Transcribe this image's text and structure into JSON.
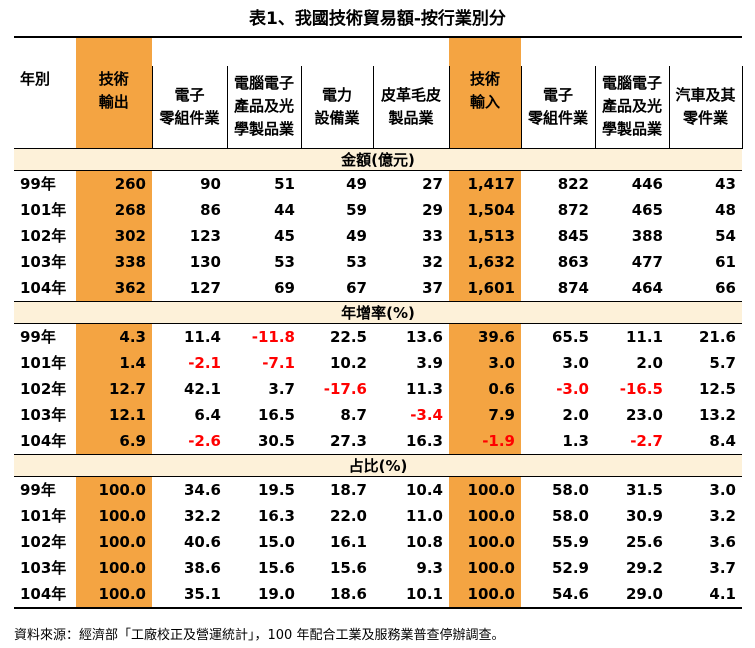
{
  "title": "表1、我國技術貿易額-按行業別分",
  "headers": [
    "年別",
    "技術輸出",
    "電子零組件業",
    "電腦電子產品及光學製品業",
    "電力設備業",
    "皮革毛皮製品業",
    "技術輸入",
    "電子零組件業",
    "電腦電子產品及光學製品業",
    "汽車及其零件業"
  ],
  "header_lines": [
    [
      "年別"
    ],
    [
      "技術",
      "輸出"
    ],
    [
      "電子",
      "零組件業"
    ],
    [
      "電腦電子",
      "產品及光",
      "學製品業"
    ],
    [
      "電力",
      "設備業"
    ],
    [
      "皮革毛皮",
      "製品業"
    ],
    [
      "技術",
      "輸入"
    ],
    [
      "電子",
      "零組件業"
    ],
    [
      "電腦電子",
      "產品及光",
      "學製品業"
    ],
    [
      "汽車及其",
      "零件業"
    ]
  ],
  "sections": [
    {
      "name": "金額(億元)",
      "rows": [
        [
          "99年",
          "260",
          "90",
          "51",
          "49",
          "27",
          "1,417",
          "822",
          "446",
          "43"
        ],
        [
          "101年",
          "268",
          "86",
          "44",
          "59",
          "29",
          "1,504",
          "872",
          "465",
          "48"
        ],
        [
          "102年",
          "302",
          "123",
          "45",
          "49",
          "33",
          "1,513",
          "845",
          "388",
          "54"
        ],
        [
          "103年",
          "338",
          "130",
          "53",
          "53",
          "32",
          "1,632",
          "863",
          "477",
          "61"
        ],
        [
          "104年",
          "362",
          "127",
          "69",
          "67",
          "37",
          "1,601",
          "874",
          "464",
          "66"
        ]
      ]
    },
    {
      "name": "年增率(%)",
      "rows": [
        [
          "99年",
          "4.3",
          "11.4",
          "-11.8",
          "22.5",
          "13.6",
          "39.6",
          "65.5",
          "11.1",
          "21.6"
        ],
        [
          "101年",
          "1.4",
          "-2.1",
          "-7.1",
          "10.2",
          "3.9",
          "3.0",
          "3.0",
          "2.0",
          "5.7"
        ],
        [
          "102年",
          "12.7",
          "42.1",
          "3.7",
          "-17.6",
          "11.3",
          "0.6",
          "-3.0",
          "-16.5",
          "12.5"
        ],
        [
          "103年",
          "12.1",
          "6.4",
          "16.5",
          "8.7",
          "-3.4",
          "7.9",
          "2.0",
          "23.0",
          "13.2"
        ],
        [
          "104年",
          "6.9",
          "-2.6",
          "30.5",
          "27.3",
          "16.3",
          "-1.9",
          "1.3",
          "-2.7",
          "8.4"
        ]
      ]
    },
    {
      "name": "占比(%)",
      "rows": [
        [
          "99年",
          "100.0",
          "34.6",
          "19.5",
          "18.7",
          "10.4",
          "100.0",
          "58.0",
          "31.5",
          "3.0"
        ],
        [
          "101年",
          "100.0",
          "32.2",
          "16.3",
          "22.0",
          "11.0",
          "100.0",
          "58.0",
          "30.9",
          "3.2"
        ],
        [
          "102年",
          "100.0",
          "40.6",
          "15.0",
          "16.1",
          "10.8",
          "100.0",
          "55.9",
          "25.6",
          "3.6"
        ],
        [
          "103年",
          "100.0",
          "38.6",
          "15.6",
          "15.6",
          "9.3",
          "100.0",
          "52.9",
          "29.2",
          "3.7"
        ],
        [
          "104年",
          "100.0",
          "35.1",
          "19.0",
          "18.6",
          "10.1",
          "100.0",
          "54.6",
          "29.0",
          "4.1"
        ]
      ]
    }
  ],
  "source": "資料來源：經濟部「工廠校正及營運統計」，100 年配合工業及服務業普查停辦調查。",
  "colors": {
    "highlight_column": "#f4a442",
    "section_band": "#fdf1d9",
    "negative": "#ff0000"
  }
}
